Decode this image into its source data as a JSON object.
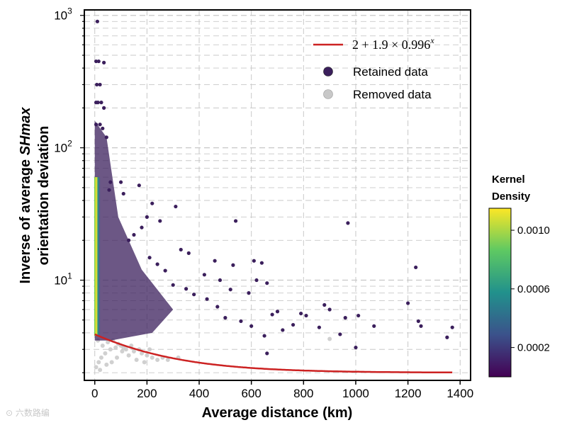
{
  "chart_data": {
    "type": "scatter",
    "xlabel": "Average distance (km)",
    "ylabel_line1_prefix": "Inverse of average ",
    "ylabel_line1_italic": "SHmax",
    "ylabel_line2": "orientation deviation",
    "xlim": [
      -40,
      1440
    ],
    "ylim_log": [
      1.75,
      1100
    ],
    "y_scale": "log",
    "x_ticks": [
      0,
      200,
      400,
      600,
      800,
      1000,
      1200,
      1400
    ],
    "y_ticks": [
      {
        "value": 10,
        "base": "10",
        "exp": "1"
      },
      {
        "value": 100,
        "base": "10",
        "exp": "2"
      },
      {
        "value": 1000,
        "base": "10",
        "exp": "3"
      }
    ],
    "grid": "dashed",
    "fit_curve": {
      "formula_main": "2 + 1.9 × 0.996",
      "formula_exp": "x",
      "a": 2,
      "b": 1.9,
      "c": 0.996,
      "color": "#cc2222",
      "x_range": [
        0,
        1370
      ]
    },
    "legend": {
      "position": "top-right",
      "retained_label": "Retained data",
      "removed_label": "Removed data",
      "retained_color": "#3b1f5c",
      "removed_color": "#c8c8c8"
    },
    "colorbar": {
      "title_line1": "Kernel",
      "title_line2": "Density",
      "ticks": [
        "0.0010",
        "0.0006",
        "0.0002"
      ],
      "tick_values": [
        0.001,
        0.0006,
        0.0002
      ],
      "range": [
        0.0,
        0.00115
      ],
      "colors": [
        "#440154",
        "#3b528b",
        "#21918c",
        "#5ec962",
        "#fde725"
      ]
    },
    "retained_points": [
      [
        10,
        900
      ],
      [
        5,
        450
      ],
      [
        15,
        450
      ],
      [
        35,
        440
      ],
      [
        8,
        300
      ],
      [
        20,
        300
      ],
      [
        5,
        220
      ],
      [
        12,
        220
      ],
      [
        25,
        220
      ],
      [
        35,
        200
      ],
      [
        5,
        150
      ],
      [
        20,
        150
      ],
      [
        30,
        140
      ],
      [
        45,
        120
      ],
      [
        60,
        55
      ],
      [
        100,
        55
      ],
      [
        55,
        48
      ],
      [
        110,
        45
      ],
      [
        170,
        52
      ],
      [
        220,
        38
      ],
      [
        310,
        36
      ],
      [
        540,
        28
      ],
      [
        970,
        27
      ],
      [
        1230,
        12.5
      ],
      [
        460,
        14
      ],
      [
        610,
        14
      ],
      [
        640,
        13.5
      ],
      [
        530,
        13
      ],
      [
        330,
        17
      ],
      [
        360,
        16
      ],
      [
        200,
        30
      ],
      [
        250,
        28
      ],
      [
        180,
        25
      ],
      [
        150,
        22
      ],
      [
        130,
        20
      ],
      [
        620,
        10
      ],
      [
        660,
        9.5
      ],
      [
        590,
        8
      ],
      [
        520,
        8.5
      ],
      [
        480,
        10
      ],
      [
        420,
        11
      ],
      [
        700,
        5.8
      ],
      [
        680,
        5.5
      ],
      [
        720,
        4.2
      ],
      [
        760,
        4.6
      ],
      [
        810,
        5.4
      ],
      [
        790,
        5.6
      ],
      [
        860,
        4.4
      ],
      [
        880,
        6.5
      ],
      [
        900,
        6.0
      ],
      [
        940,
        3.9
      ],
      [
        960,
        5.2
      ],
      [
        1000,
        3.1
      ],
      [
        1010,
        5.4
      ],
      [
        1070,
        4.5
      ],
      [
        1200,
        6.7
      ],
      [
        1240,
        4.9
      ],
      [
        1250,
        4.5
      ],
      [
        1350,
        3.7
      ],
      [
        1370,
        4.4
      ],
      [
        650,
        3.8
      ],
      [
        660,
        2.8
      ],
      [
        600,
        4.5
      ],
      [
        560,
        4.9
      ],
      [
        500,
        5.2
      ],
      [
        470,
        6.3
      ],
      [
        430,
        7.2
      ],
      [
        380,
        7.8
      ],
      [
        350,
        8.6
      ],
      [
        300,
        9.2
      ],
      [
        270,
        11.8
      ],
      [
        240,
        13.2
      ],
      [
        210,
        14.8
      ]
    ],
    "removed_points": [
      [
        5,
        2.2
      ],
      [
        15,
        2.4
      ],
      [
        25,
        2.6
      ],
      [
        40,
        2.8
      ],
      [
        60,
        3.0
      ],
      [
        80,
        3.1
      ],
      [
        100,
        3.2
      ],
      [
        120,
        3.0
      ],
      [
        150,
        2.9
      ],
      [
        180,
        2.8
      ],
      [
        200,
        2.7
      ],
      [
        220,
        2.6
      ],
      [
        240,
        2.5
      ],
      [
        12,
        3.5
      ],
      [
        30,
        3.2
      ],
      [
        50,
        3.4
      ],
      [
        70,
        3.5
      ],
      [
        90,
        3.3
      ],
      [
        110,
        3.1
      ],
      [
        130,
        2.7
      ],
      [
        160,
        2.5
      ],
      [
        190,
        2.4
      ],
      [
        20,
        2.1
      ],
      [
        45,
        2.3
      ],
      [
        65,
        2.4
      ],
      [
        85,
        2.6
      ],
      [
        105,
        2.9
      ],
      [
        140,
        3.2
      ],
      [
        170,
        3.0
      ],
      [
        210,
        3.0
      ],
      [
        260,
        2.6
      ],
      [
        280,
        2.5
      ],
      [
        320,
        2.6
      ],
      [
        900,
        3.6
      ]
    ]
  }
}
